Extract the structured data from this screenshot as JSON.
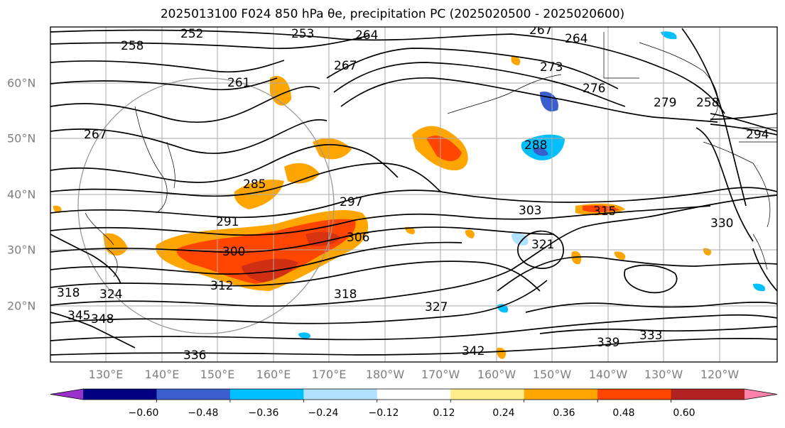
{
  "title": "2025013100 F024 850 hPa θe, precipitation PC (2025020500 - 2025020600)",
  "lon_labels": [
    "130°E",
    "140°E",
    "150°E",
    "160°E",
    "170°E",
    "180°W",
    "170°W",
    "160°W",
    "150°W",
    "140°W",
    "130°W",
    "120°W"
  ],
  "lat_labels": [
    "60°N",
    "50°N",
    "40°N",
    "30°N",
    "20°N"
  ],
  "colorbar": {
    "colors": [
      "#9932cc",
      "#000080",
      "#3a5fcd",
      "#00bfff",
      "#b0e2ff",
      "#ffffff",
      "#ffec8b",
      "#ffa500",
      "#ff4500",
      "#b22222",
      "#ff82ab"
    ],
    "tick_labels": [
      "−0.60",
      "−0.48",
      "−0.36",
      "−0.24",
      "−0.12",
      "0.12",
      "0.24",
      "0.36",
      "0.48",
      "0.60"
    ]
  },
  "contour_labels": [
    "252",
    "258",
    "253",
    "264",
    "267",
    "264",
    "267",
    "261",
    "273",
    "276",
    "279",
    "258",
    "294",
    "267",
    "285",
    "288",
    "291",
    "297",
    "303",
    "306",
    "300",
    "312",
    "318",
    "315",
    "318",
    "321",
    "324",
    "327",
    "330",
    "333",
    "336",
    "339",
    "342",
    "345",
    "348"
  ]
}
